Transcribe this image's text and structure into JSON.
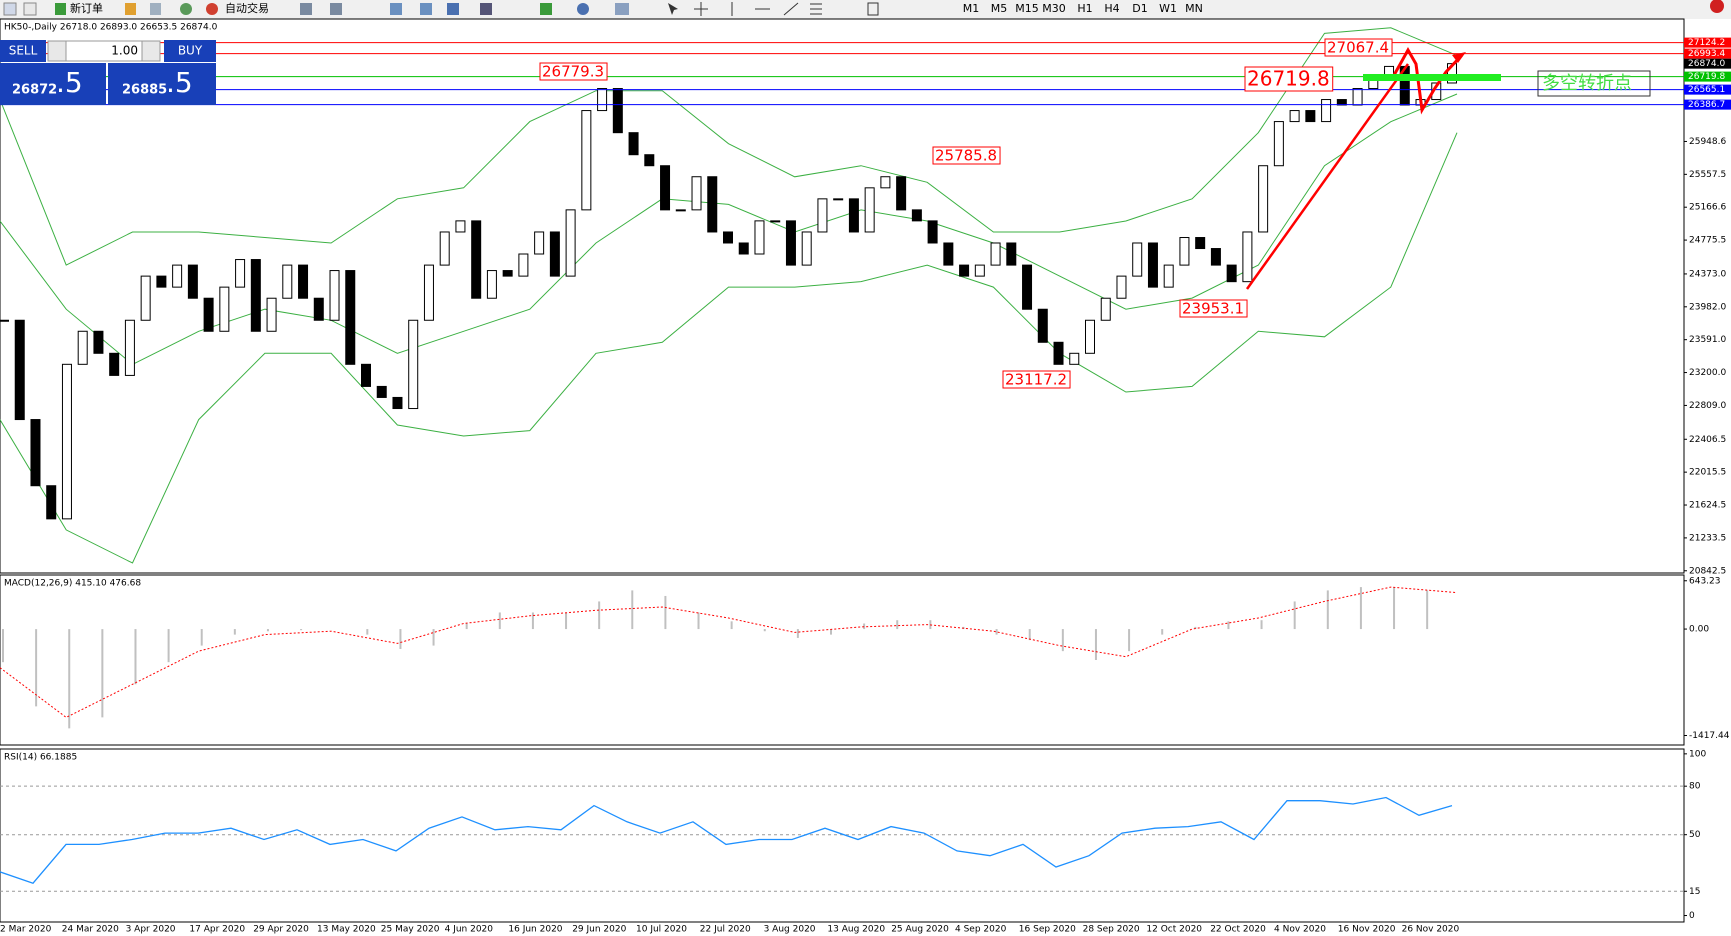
{
  "toolbar": {
    "buttons": [
      "新订单",
      "自动交易"
    ],
    "timeframes": [
      "M1",
      "M5",
      "M15",
      "M30",
      "H1",
      "H4",
      "D1",
      "W1",
      "MN"
    ]
  },
  "trade_panel": {
    "sell": "SELL",
    "lots": "1.00",
    "buy": "BUY",
    "bid": "26872",
    "bid_tail": ".5",
    "ask": "26885",
    "ask_tail": ".5"
  },
  "date_axis": [
    "2 Mar 2020",
    "24 Mar 2020",
    "3 Apr 2020",
    "17 Apr 2020",
    "29 Apr 2020",
    "13 May 2020",
    "25 May 2020",
    "4 Jun 2020",
    "16 Jun 2020",
    "29 Jun 2020",
    "10 Jul 2020",
    "22 Jul 2020",
    "3 Aug 2020",
    "13 Aug 2020",
    "25 Aug 2020",
    "4 Sep 2020",
    "16 Sep 2020",
    "28 Sep 2020",
    "12 Oct 2020",
    "22 Oct 2020",
    "4 Nov 2020",
    "16 Nov 2020",
    "26 Nov 2020"
  ],
  "chart_data": [
    {
      "type": "candlestick",
      "title": "HK50-,Daily 26718.0 26893.0 26653.5 26874.0",
      "values": [
        23822,
        22641,
        21854,
        21460,
        23298,
        23691,
        23429,
        23166,
        23822,
        24347,
        24216,
        24478,
        24084,
        23691,
        24216,
        24544,
        23691,
        24084,
        24478,
        24084,
        23822,
        24413,
        23298,
        23035,
        22904,
        22772,
        23822,
        24478,
        24872,
        25004,
        24084,
        24413,
        24347,
        24610,
        24872,
        24347,
        25135,
        26316,
        26578,
        26053,
        25791,
        25660,
        25135,
        25135,
        25529,
        24872,
        24741,
        24610,
        25004,
        25004,
        24478,
        24872,
        25266,
        25266,
        24872,
        25397,
        25529,
        25135,
        25004,
        24741,
        24478,
        24347,
        24478,
        24741,
        24478,
        23953,
        23560,
        23298,
        23429,
        23822,
        24084,
        24347,
        24741,
        24216,
        24478,
        24806,
        24675,
        24478,
        24281,
        24872,
        25660,
        26185,
        26316,
        26185,
        26447,
        26382,
        26578,
        26710,
        26841,
        26382,
        26447,
        26644,
        26874
      ],
      "up_color": "#ffffff",
      "down_color": "#000000",
      "bands": [
        {
          "values": [
            26447,
            24478,
            24872,
            24872,
            24806,
            24741,
            25266,
            25397,
            26185,
            26552,
            26552,
            25922,
            25528,
            25660,
            25463,
            24872,
            24872,
            25003,
            25266,
            26053,
            27234,
            27300,
            26972
          ]
        },
        {
          "values": [
            25003,
            23954,
            23297,
            23691,
            23954,
            23822,
            23429,
            23691,
            23954,
            24741,
            25266,
            25200,
            24872,
            25135,
            25003,
            24741,
            24347,
            23954,
            24085,
            24478,
            25660,
            26184,
            26513
          ]
        },
        {
          "values": [
            22641,
            21329,
            20935,
            22641,
            23429,
            23429,
            22576,
            22445,
            22510,
            23429,
            23560,
            24216,
            24216,
            24282,
            24478,
            24216,
            23429,
            22969,
            23035,
            23691,
            23625,
            24216,
            26053
          ]
        }
      ],
      "bands_color": "#3cb043",
      "ylim": [
        20816,
        27405
      ],
      "yticks": [
        25948.6,
        25557.5,
        25166.6,
        24775.5,
        {
          "value": 24373,
          "label": "24373.0"
        },
        {
          "value": 23982,
          "label": "23982.0"
        },
        {
          "value": 23591,
          "label": "23591.0"
        },
        {
          "value": 23200,
          "label": "23200.0"
        },
        {
          "value": 22809,
          "label": "22809.0"
        },
        22406.5,
        22015.5,
        21624.5,
        21233.5,
        20842.5
      ],
      "price_lines": [
        {
          "value": 27124.2,
          "color": "#ff0000"
        },
        {
          "value": 26993.4,
          "color": "#ff0000"
        },
        {
          "value": 26874,
          "label": "26874.0",
          "color": "#000000",
          "line": false
        },
        {
          "value": 26719.8,
          "color": "#00c000"
        },
        {
          "value": 26565.1,
          "color": "#0000ff"
        },
        {
          "value": 26386.7,
          "color": "#0000ff"
        }
      ],
      "annotations": [
        "26779.3",
        "25785.8",
        "23117.2",
        "23953.1",
        "27067.4",
        "26719.8"
      ],
      "note": "多空转折点"
    },
    {
      "type": "macd",
      "title": "MACD(12,26,9) 415.10 476.68",
      "histogram": [
        -441,
        -1029,
        -1323,
        -1176,
        -735,
        -441,
        -220,
        -74,
        -29,
        -15,
        0,
        -74,
        -265,
        -220,
        74,
        221,
        221,
        221,
        368,
        515,
        441,
        221,
        103,
        -29,
        -118,
        -74,
        74,
        118,
        118,
        29,
        -74,
        -147,
        -294,
        -412,
        -294,
        -74,
        29,
        103,
        118,
        368,
        515,
        559,
        559,
        515
      ],
      "signal": [
        -515,
        -1176,
        -735,
        -294,
        -74,
        -29,
        -191,
        74,
        176,
        250,
        294,
        147,
        -44,
        29,
        59,
        -29,
        -220,
        -368,
        0,
        147,
        368,
        559,
        485
      ],
      "color": "#c0c0c0",
      "signal_color": "#ff0000",
      "ylim": [
        -1544,
        720
      ],
      "yticks": [
        643.23,
        {
          "value": 0,
          "label": "0.00"
        },
        -1417.44
      ]
    },
    {
      "type": "line",
      "title": "RSI(14) 66.1885",
      "values": [
        27,
        20,
        44,
        44,
        47,
        51,
        51,
        54,
        47,
        53,
        44,
        47,
        40,
        54,
        61,
        53,
        55,
        53,
        68,
        58,
        51,
        58,
        44,
        47,
        47,
        54,
        47,
        55,
        51,
        40,
        37,
        44,
        30,
        37,
        51,
        54,
        55,
        58,
        47,
        71,
        71,
        69,
        73,
        62,
        68
      ],
      "color": "#1e90ff",
      "ylim": [
        -4,
        103
      ],
      "yticks": [
        100,
        80,
        50,
        15,
        0
      ],
      "levels": [
        80,
        50,
        15
      ]
    }
  ]
}
